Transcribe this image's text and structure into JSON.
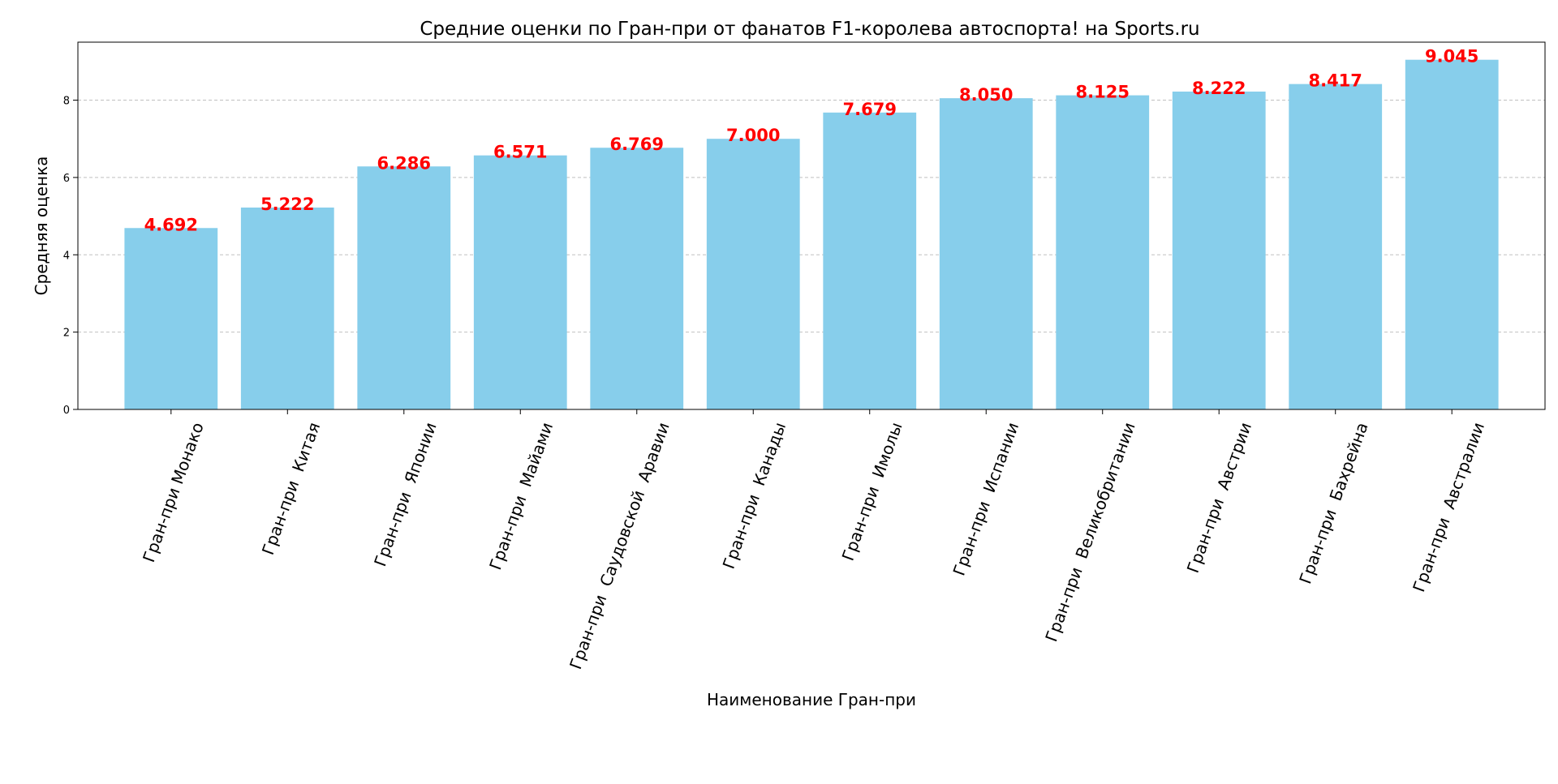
{
  "chart_data": {
    "type": "bar",
    "title": "Средние оценки по Гран-при от фанатов F1-королева автоспорта! на Sports.ru",
    "xlabel": "Наименование Гран-при",
    "ylabel": "Средняя оценка",
    "categories": [
      "Гран-при Монако",
      "Гран-при  Китая",
      "Гран-при  Японии",
      "Гран-при  Майами",
      "Гран-при  Саудовской  Аравии",
      "Гран-при  Канады",
      "Гран-при  Имолы",
      "Гран-при  Испании",
      "Гран-при  Великобритании",
      "Гран-при  Австрии",
      "Гран-при  Бахрейна",
      "Гран-при  Австралии"
    ],
    "values": [
      4.692,
      5.222,
      6.286,
      6.571,
      6.769,
      7.0,
      7.679,
      8.05,
      8.125,
      8.222,
      8.417,
      9.045
    ],
    "data_labels": [
      "4.692",
      "5.222",
      "6.286",
      "6.571",
      "6.769",
      "7.000",
      "7.679",
      "8.050",
      "8.125",
      "8.222",
      "8.417",
      "9.045"
    ],
    "ylim": [
      0,
      9.5
    ],
    "yticks": [
      0,
      2,
      4,
      6,
      8
    ],
    "ytick_labels": [
      "0",
      "2",
      "4",
      "6",
      "8"
    ],
    "grid": "y, dashed",
    "legend": "none",
    "colors": {
      "bar": "#87ceeb",
      "data_label": "#ff0000",
      "grid": "#c0c0c0",
      "axes": "#000000"
    }
  }
}
